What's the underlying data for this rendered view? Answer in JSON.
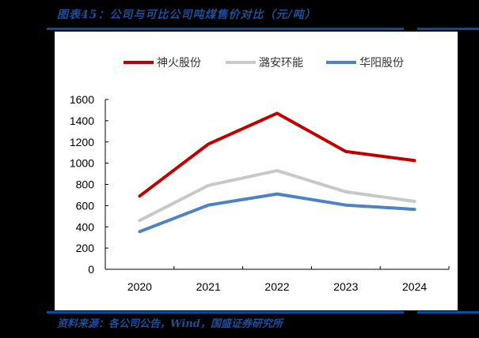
{
  "header": {
    "title": "图表45：公司与可比公司吨煤售价对比（元/吨）"
  },
  "footer": {
    "source": "资料来源：各公司公告，Wind，国盛证券研究所"
  },
  "colors": {
    "brand_blue": "#0e4aa0",
    "shenhuo": "#c00000",
    "luan": "#c8c8c8",
    "huayang": "#4f81c6"
  },
  "chart_data": {
    "type": "line",
    "title": "公司与可比公司吨煤售价对比（元/吨）",
    "xlabel": "",
    "ylabel": "",
    "categories": [
      "2020",
      "2021",
      "2022",
      "2023",
      "2024"
    ],
    "ylim": [
      0,
      1600
    ],
    "yticks": [
      0,
      200,
      400,
      600,
      800,
      1000,
      1200,
      1400,
      1600
    ],
    "grid": false,
    "legend_position": "top",
    "series": [
      {
        "name": "神火股份",
        "color": "#c00000",
        "values": [
          690,
          1180,
          1470,
          1110,
          1025
        ]
      },
      {
        "name": "潞安环能",
        "color": "#c8c8c8",
        "values": [
          460,
          790,
          930,
          730,
          640
        ]
      },
      {
        "name": "华阳股份",
        "color": "#4f81c6",
        "values": [
          355,
          605,
          710,
          605,
          565
        ]
      }
    ]
  }
}
